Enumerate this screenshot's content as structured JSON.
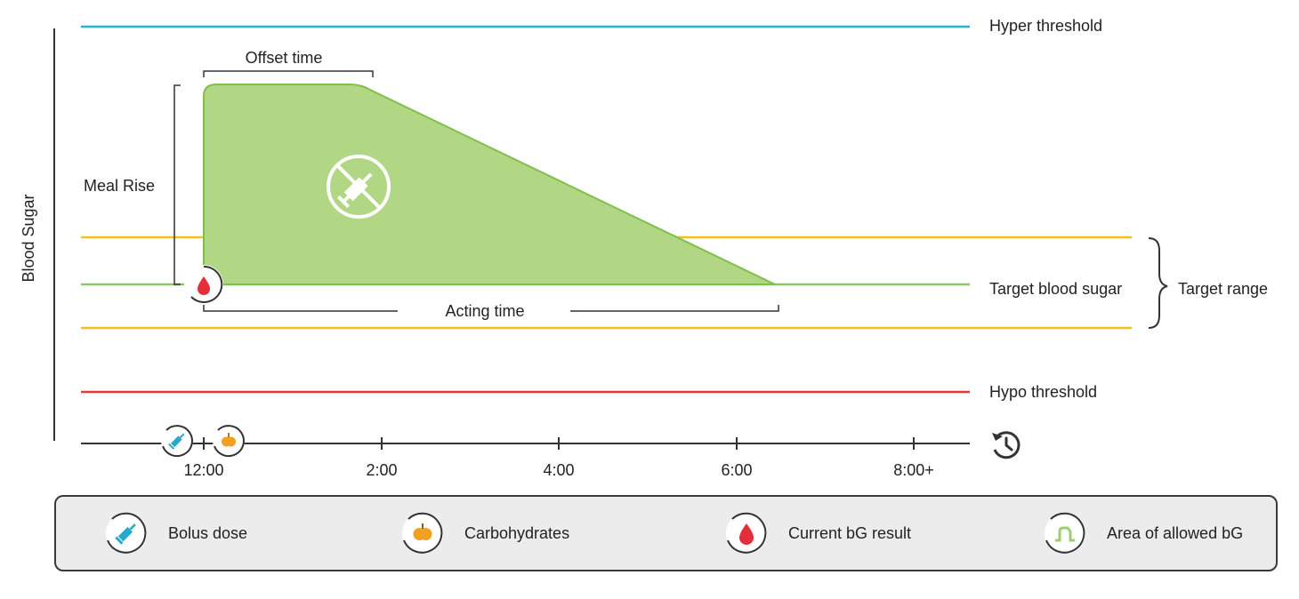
{
  "axis": {
    "y_label": "Blood Sugar"
  },
  "thresholds": {
    "hyper": "Hyper threshold",
    "target": "Target blood sugar",
    "hypo": "Hypo threshold",
    "range": "Target range"
  },
  "annotations": {
    "offset_time": "Offset time",
    "meal_rise": "Meal Rise",
    "acting_time": "Acting time"
  },
  "timeline": {
    "ticks": [
      "12:00",
      "2:00",
      "4:00",
      "6:00",
      "8:00+"
    ]
  },
  "legend": [
    {
      "label": "Bolus dose",
      "icon": "syringe-icon"
    },
    {
      "label": "Carbohydrates",
      "icon": "apple-icon"
    },
    {
      "label": "Current bG result",
      "icon": "blood-drop-icon"
    },
    {
      "label": "Area of allowed bG",
      "icon": "allowed-area-icon"
    }
  ],
  "colors": {
    "hyper": "#29b4c9",
    "target": "#8cc66a",
    "range": "#f2c21b",
    "hypo": "#e8363f",
    "area_fill": "#b2d784",
    "area_stroke": "#7fbf4d",
    "blood": "#e52d3c",
    "syringe": "#29a9c9",
    "apple": "#f0a023"
  }
}
